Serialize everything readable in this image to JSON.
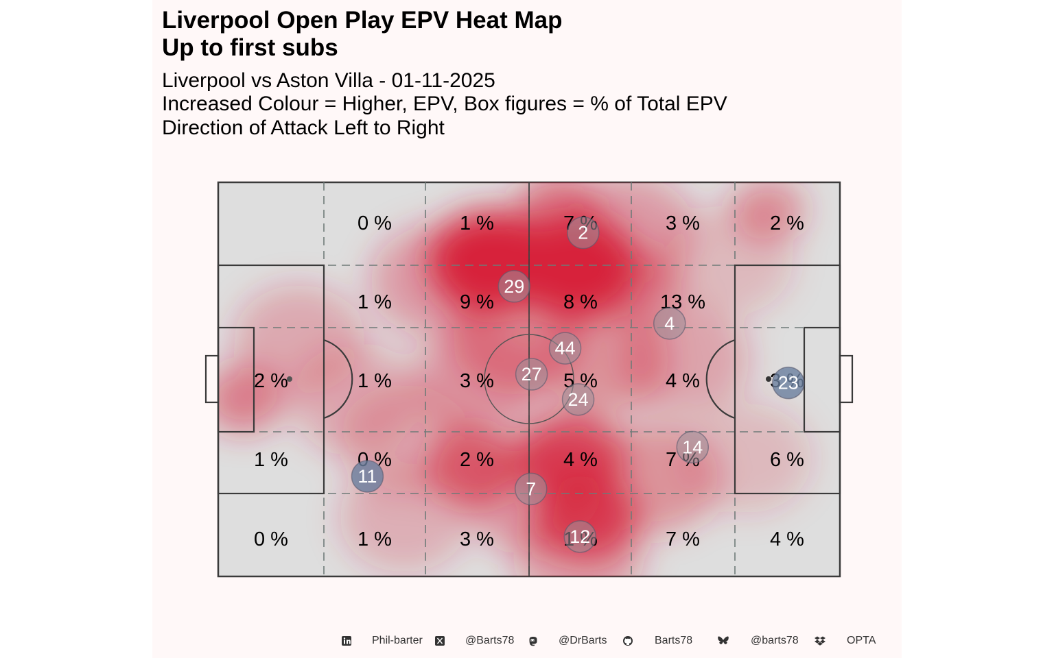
{
  "title_line1": "Liverpool Open Play EPV Heat Map",
  "title_line2": "Up to first subs",
  "subtitle_line1": "Liverpool vs Aston Villa - 01-11-2025",
  "subtitle_line2": "Increased Colour = Higher, EPV, Box figures = % of Total EPV",
  "subtitle_line3": "Direction of Attack Left to Right",
  "colors": {
    "panel_bg": "#fff8f8",
    "pitch_fill": "#dedede",
    "heat": "#d7213a",
    "player_dot": "#9c8f99",
    "player_dot_highlight": "#6a7f9f"
  },
  "chart_data": {
    "type": "heatmap",
    "title": "Liverpool Open Play EPV Heat Map\nUp to first subs",
    "zones": {
      "rows": [
        [
          "",
          "0 %",
          "1 %",
          "7 %",
          "3 %",
          "2 %"
        ],
        [
          "",
          "1 %",
          "9 %",
          "8 %",
          "13 %",
          ""
        ],
        [
          "2 %",
          "1 %",
          "3 %",
          "5 %",
          "4 %",
          "3 %"
        ],
        [
          "1 %",
          "0 %",
          "2 %",
          "4 %",
          "7 %",
          "6 %"
        ],
        [
          "0 %",
          "1 %",
          "3 %",
          "1 %",
          "7 %",
          "4 %"
        ]
      ]
    },
    "players": [
      {
        "number": "2",
        "x": 58.7,
        "y": 87.2,
        "highlight": false
      },
      {
        "number": "29",
        "x": 47.6,
        "y": 73.6,
        "highlight": false
      },
      {
        "number": "4",
        "x": 72.6,
        "y": 64.2,
        "highlight": false
      },
      {
        "number": "44",
        "x": 55.8,
        "y": 57.9,
        "highlight": false
      },
      {
        "number": "27",
        "x": 50.4,
        "y": 51.3,
        "highlight": false
      },
      {
        "number": "23",
        "x": 91.7,
        "y": 49.1,
        "highlight": true
      },
      {
        "number": "24",
        "x": 57.9,
        "y": 44.9,
        "highlight": false
      },
      {
        "number": "14",
        "x": 76.3,
        "y": 32.8,
        "highlight": false
      },
      {
        "number": "11",
        "x": 24.0,
        "y": 25.4,
        "highlight": true
      },
      {
        "number": "7",
        "x": 50.3,
        "y": 22.2,
        "highlight": false
      },
      {
        "number": "12",
        "x": 58.2,
        "y": 10.1,
        "highlight": false
      }
    ],
    "heat_blobs": [
      {
        "x": 43.8,
        "y": 79.9,
        "intensity": 1.0
      },
      {
        "x": 57.5,
        "y": 78.5,
        "intensity": 1.0
      },
      {
        "x": 56.5,
        "y": 30.0,
        "intensity": 0.75
      },
      {
        "x": 59.2,
        "y": 14.8,
        "intensity": 0.7
      },
      {
        "x": 41.1,
        "y": 28.0,
        "intensity": 0.55
      },
      {
        "x": 54.6,
        "y": 93.4,
        "intensity": 0.4
      },
      {
        "x": 68.1,
        "y": 73.4,
        "intensity": 0.35
      },
      {
        "x": 4.1,
        "y": 45.0,
        "intensity": 0.35
      },
      {
        "x": 88.5,
        "y": 93.0,
        "intensity": 0.25
      }
    ]
  },
  "footer": [
    {
      "icon": "linkedin-icon",
      "label": "Phil-barter"
    },
    {
      "icon": "x-twitter-icon",
      "label": "@Barts78"
    },
    {
      "icon": "mastodon-icon",
      "label": "@DrBarts"
    },
    {
      "icon": "github-icon",
      "label": "Barts78"
    },
    {
      "icon": "bluesky-icon",
      "label": "@barts78"
    },
    {
      "icon": "dropbox-icon",
      "label": "OPTA"
    }
  ]
}
